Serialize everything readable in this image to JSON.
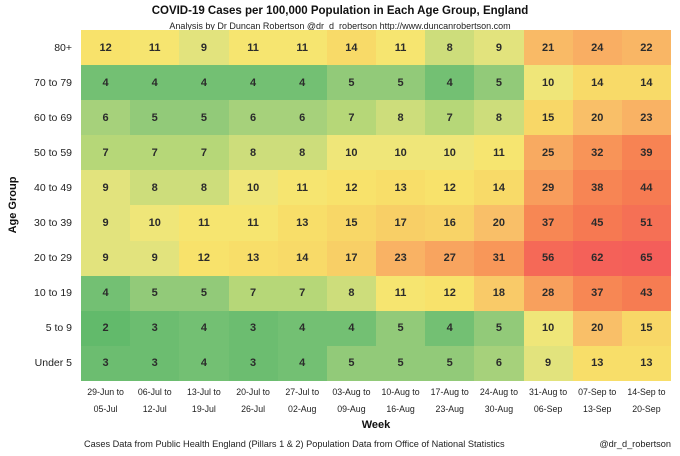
{
  "footer": {
    "source": "Cases Data from Public Health England (Pillars 1 & 2) Population Data from Office of National Statistics",
    "handle": "@dr_d_robertson"
  },
  "chart_data": {
    "type": "heatmap",
    "title": "COVID-19 Cases per 100,000 Population in Each Age Group, England",
    "subtitle": "Analysis by Dr Duncan Robertson @dr_d_robertson http://www.duncanrobertson.com",
    "xlabel": "Week",
    "ylabel": "Age Group",
    "rows": [
      "80+",
      "70 to 79",
      "60 to 69",
      "50 to 59",
      "40 to 49",
      "30 to 39",
      "20 to 29",
      "10 to 19",
      "5 to 9",
      "Under 5"
    ],
    "columns": [
      {
        "line1": "29-Jun to",
        "line2": "05-Jul"
      },
      {
        "line1": "06-Jul to",
        "line2": "12-Jul"
      },
      {
        "line1": "13-Jul to",
        "line2": "19-Jul"
      },
      {
        "line1": "20-Jul to",
        "line2": "26-Jul"
      },
      {
        "line1": "27-Jul to",
        "line2": "02-Aug"
      },
      {
        "line1": "03-Aug to",
        "line2": "09-Aug"
      },
      {
        "line1": "10-Aug to",
        "line2": "16-Aug"
      },
      {
        "line1": "17-Aug to",
        "line2": "23-Aug"
      },
      {
        "line1": "24-Aug to",
        "line2": "30-Aug"
      },
      {
        "line1": "31-Aug to",
        "line2": "06-Sep"
      },
      {
        "line1": "07-Sep to",
        "line2": "13-Sep"
      },
      {
        "line1": "14-Sep to",
        "line2": "20-Sep"
      }
    ],
    "values": [
      [
        12,
        11,
        9,
        11,
        11,
        14,
        11,
        8,
        9,
        21,
        24,
        22
      ],
      [
        4,
        4,
        4,
        4,
        4,
        5,
        5,
        4,
        5,
        10,
        14,
        14
      ],
      [
        6,
        5,
        5,
        6,
        6,
        7,
        8,
        7,
        8,
        15,
        20,
        23
      ],
      [
        7,
        7,
        7,
        8,
        8,
        10,
        10,
        10,
        11,
        25,
        32,
        39
      ],
      [
        9,
        8,
        8,
        10,
        11,
        12,
        13,
        12,
        14,
        29,
        38,
        44
      ],
      [
        9,
        10,
        11,
        11,
        13,
        15,
        17,
        16,
        20,
        37,
        45,
        51
      ],
      [
        9,
        9,
        12,
        13,
        14,
        17,
        23,
        27,
        31,
        56,
        62,
        65
      ],
      [
        4,
        5,
        5,
        7,
        7,
        8,
        11,
        12,
        18,
        28,
        37,
        43
      ],
      [
        2,
        3,
        4,
        3,
        4,
        4,
        5,
        4,
        5,
        10,
        20,
        15
      ],
      [
        3,
        3,
        4,
        3,
        4,
        5,
        5,
        5,
        6,
        9,
        13,
        13
      ]
    ],
    "color_scale": {
      "scale": "log",
      "min": 2,
      "max": 65,
      "stops": [
        {
          "t": 0.0,
          "color": "#62ba6b"
        },
        {
          "t": 0.12,
          "color": "#6cbd70"
        },
        {
          "t": 0.2,
          "color": "#73c073"
        },
        {
          "t": 0.27,
          "color": "#95cb7a"
        },
        {
          "t": 0.32,
          "color": "#a8d27b"
        },
        {
          "t": 0.37,
          "color": "#bad877"
        },
        {
          "t": 0.4,
          "color": "#cedd7b"
        },
        {
          "t": 0.44,
          "color": "#e7e57d"
        },
        {
          "t": 0.47,
          "color": "#f2e678"
        },
        {
          "t": 0.5,
          "color": "#f8e46c"
        },
        {
          "t": 0.56,
          "color": "#f8da68"
        },
        {
          "t": 0.61,
          "color": "#f8d166"
        },
        {
          "t": 0.65,
          "color": "#f9c369"
        },
        {
          "t": 0.7,
          "color": "#f9b264"
        },
        {
          "t": 0.74,
          "color": "#f8a660"
        },
        {
          "t": 0.79,
          "color": "#f89659"
        },
        {
          "t": 0.84,
          "color": "#f78654"
        },
        {
          "t": 0.89,
          "color": "#f67a52"
        },
        {
          "t": 0.94,
          "color": "#f56d56"
        },
        {
          "t": 1.0,
          "color": "#f45e5a"
        }
      ]
    },
    "cell_text_color": "#2b2b2b"
  }
}
